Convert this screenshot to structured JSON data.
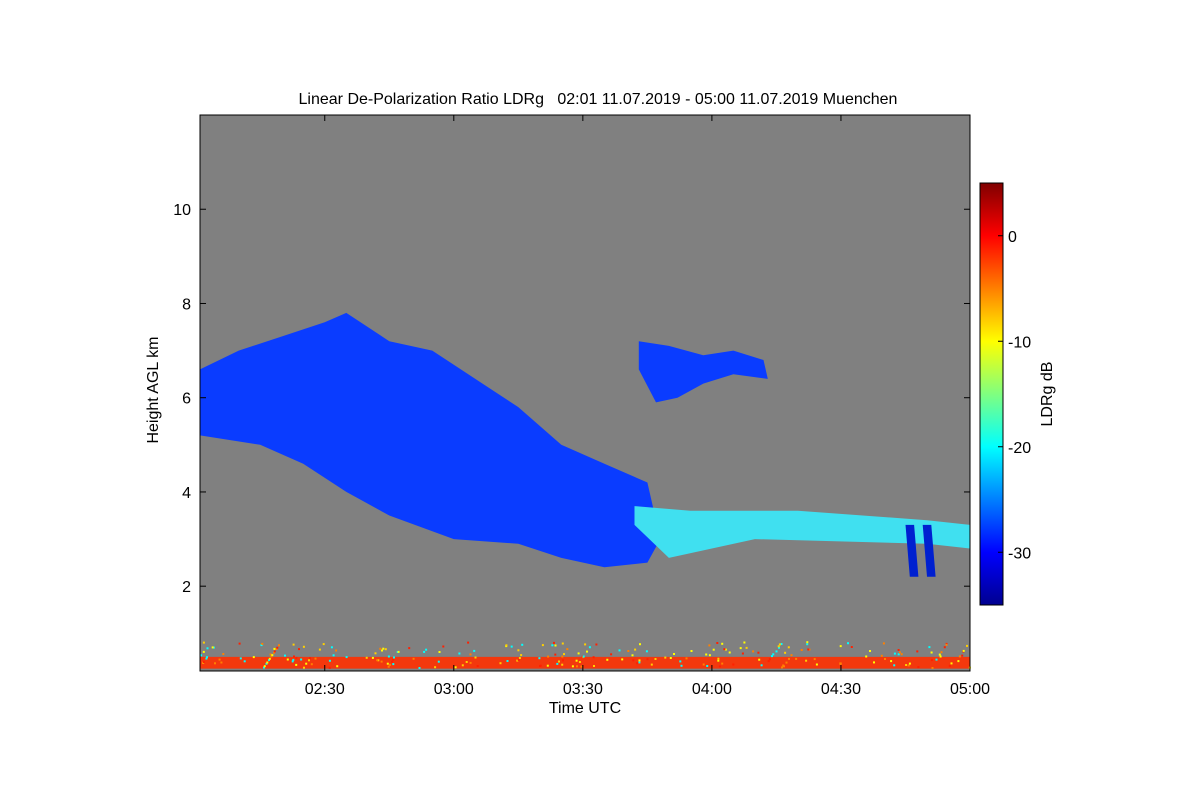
{
  "chart_data": {
    "type": "heatmap",
    "title": "Linear De-Polarization Ratio LDRg   02:01 11.07.2019 - 05:00 11.07.2019 Muenchen",
    "xlabel": "Time UTC",
    "ylabel": "Height AGL km",
    "x_range": [
      "02:01",
      "05:00"
    ],
    "x_ticks": [
      "02:30",
      "03:00",
      "03:30",
      "04:00",
      "04:30",
      "05:00"
    ],
    "ylim": [
      0.2,
      12
    ],
    "y_ticks": [
      2,
      4,
      6,
      8,
      10
    ],
    "grid": false,
    "background_color": "#808080",
    "colorbar": {
      "label": "LDRg dB",
      "range": [
        -35,
        5
      ],
      "ticks": [
        0,
        -10,
        -20,
        -30
      ],
      "colormap": "jet"
    },
    "features": [
      {
        "name": "main cloud layer",
        "ldr_db": -30,
        "color": "#0a3cff",
        "outline": [
          [
            "02:01",
            6.6
          ],
          [
            "02:10",
            7.0
          ],
          [
            "02:20",
            7.3
          ],
          [
            "02:30",
            7.6
          ],
          [
            "02:35",
            7.8
          ],
          [
            "02:45",
            7.2
          ],
          [
            "02:55",
            7.0
          ],
          [
            "03:05",
            6.4
          ],
          [
            "03:15",
            5.8
          ],
          [
            "03:25",
            5.0
          ],
          [
            "03:35",
            4.6
          ],
          [
            "03:45",
            4.2
          ],
          [
            "03:48",
            3.0
          ],
          [
            "03:45",
            2.5
          ],
          [
            "03:35",
            2.4
          ],
          [
            "03:25",
            2.6
          ],
          [
            "03:15",
            2.9
          ],
          [
            "03:00",
            3.0
          ],
          [
            "02:45",
            3.5
          ],
          [
            "02:35",
            4.0
          ],
          [
            "02:25",
            4.6
          ],
          [
            "02:15",
            5.0
          ],
          [
            "02:01",
            5.2
          ]
        ]
      },
      {
        "name": "upper cloud",
        "ldr_db": -30,
        "color": "#0a3cff",
        "outline": [
          [
            "03:43",
            7.2
          ],
          [
            "03:50",
            7.1
          ],
          [
            "03:58",
            6.9
          ],
          [
            "04:05",
            7.0
          ],
          [
            "04:12",
            6.8
          ],
          [
            "04:13",
            6.4
          ],
          [
            "04:05",
            6.5
          ],
          [
            "03:58",
            6.3
          ],
          [
            "03:52",
            6.0
          ],
          [
            "03:47",
            5.9
          ],
          [
            "03:43",
            6.6
          ]
        ]
      },
      {
        "name": "high-depolarization layer",
        "ldr_db": -21,
        "color": "#40e0f0",
        "outline": [
          [
            "03:42",
            3.7
          ],
          [
            "03:55",
            3.6
          ],
          [
            "04:20",
            3.6
          ],
          [
            "04:50",
            3.4
          ],
          [
            "05:00",
            3.3
          ],
          [
            "05:00",
            2.8
          ],
          [
            "04:50",
            2.9
          ],
          [
            "04:10",
            3.0
          ],
          [
            "03:50",
            2.6
          ],
          [
            "03:42",
            3.3
          ]
        ]
      },
      {
        "name": "fall streak 1",
        "ldr_db": -32,
        "color": "#0020d0",
        "outline": [
          [
            "04:45",
            3.3
          ],
          [
            "04:47",
            3.3
          ],
          [
            "04:48",
            2.2
          ],
          [
            "04:46",
            2.2
          ]
        ]
      },
      {
        "name": "fall streak 2",
        "ldr_db": -32,
        "color": "#0020d0",
        "outline": [
          [
            "04:49",
            3.3
          ],
          [
            "04:51",
            3.3
          ],
          [
            "04:52",
            2.2
          ],
          [
            "04:50",
            2.2
          ]
        ]
      },
      {
        "name": "near-surface clutter",
        "ldr_db": 0,
        "color": "#ff3000",
        "outline": [
          [
            "02:01",
            0.5
          ],
          [
            "05:00",
            0.5
          ],
          [
            "05:00",
            0.25
          ],
          [
            "02:01",
            0.25
          ]
        ]
      }
    ]
  }
}
